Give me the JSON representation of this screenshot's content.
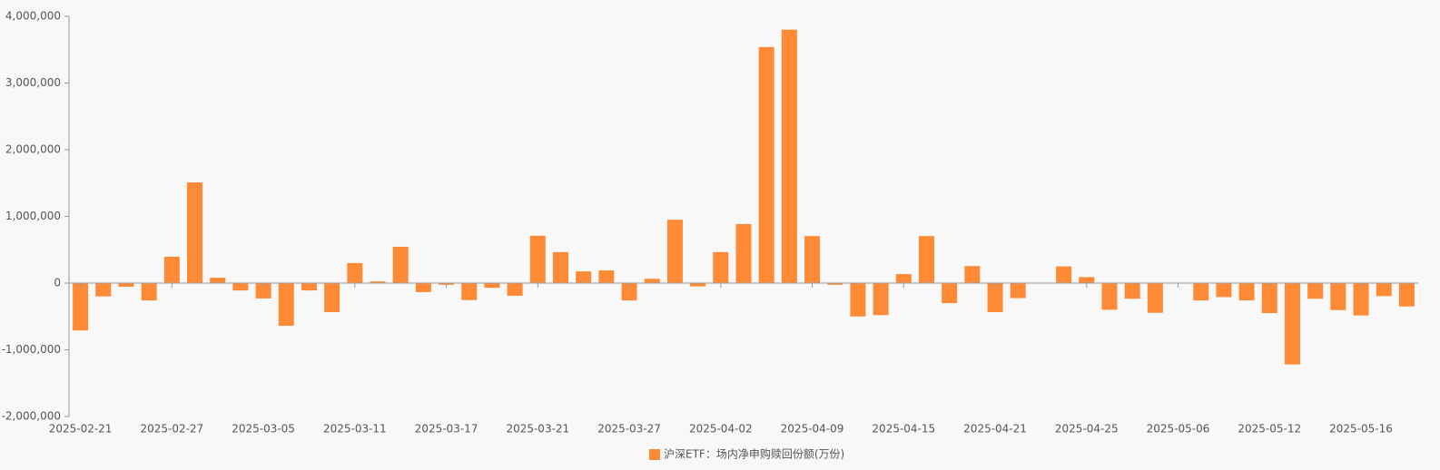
{
  "chart_data": {
    "type": "bar",
    "categories": [
      "2025-02-21",
      null,
      null,
      null,
      "2025-02-27",
      null,
      null,
      null,
      "2025-03-05",
      null,
      null,
      null,
      "2025-03-11",
      null,
      null,
      null,
      "2025-03-17",
      null,
      null,
      null,
      "2025-03-21",
      null,
      null,
      null,
      "2025-03-27",
      null,
      null,
      null,
      "2025-04-02",
      null,
      null,
      null,
      "2025-04-09",
      null,
      null,
      null,
      "2025-04-15",
      null,
      null,
      null,
      "2025-04-21",
      null,
      null,
      null,
      "2025-04-25",
      null,
      null,
      null,
      "2025-05-06",
      null,
      null,
      null,
      "2025-05-12",
      null,
      null,
      null,
      "2025-05-16",
      null,
      null
    ],
    "series": [
      {
        "name": "沪深ETF：场内净申购赎回份额(万份)",
        "color": "#ff8a35",
        "values": [
          -710000,
          -200000,
          -55000,
          -260000,
          395000,
          1510000,
          80000,
          -110000,
          -230000,
          -640000,
          -110000,
          -435000,
          300000,
          25000,
          545000,
          -135000,
          -25000,
          -255000,
          -70000,
          -190000,
          710000,
          465000,
          175000,
          190000,
          -260000,
          65000,
          950000,
          -50000,
          465000,
          885000,
          3540000,
          3800000,
          705000,
          -25000,
          -500000,
          -480000,
          135000,
          705000,
          -300000,
          255000,
          -435000,
          -225000,
          -5000,
          250000,
          90000,
          -400000,
          -235000,
          -445000,
          -5000,
          -260000,
          -210000,
          -260000,
          -450000,
          -1220000,
          -235000,
          -405000,
          -485000,
          -195000,
          -350000
        ]
      }
    ],
    "ylim": [
      -2000000,
      4000000
    ],
    "yticks": [
      {
        "value": -2000000,
        "label": "-2,000,000"
      },
      {
        "value": -1000000,
        "label": "-1,000,000"
      },
      {
        "value": 0,
        "label": "0"
      },
      {
        "value": 1000000,
        "label": "1,000,000"
      },
      {
        "value": 2000000,
        "label": "2,000,000"
      },
      {
        "value": 3000000,
        "label": "3,000,000"
      },
      {
        "value": 4000000,
        "label": "4,000,000"
      }
    ],
    "legend": "bottom"
  }
}
